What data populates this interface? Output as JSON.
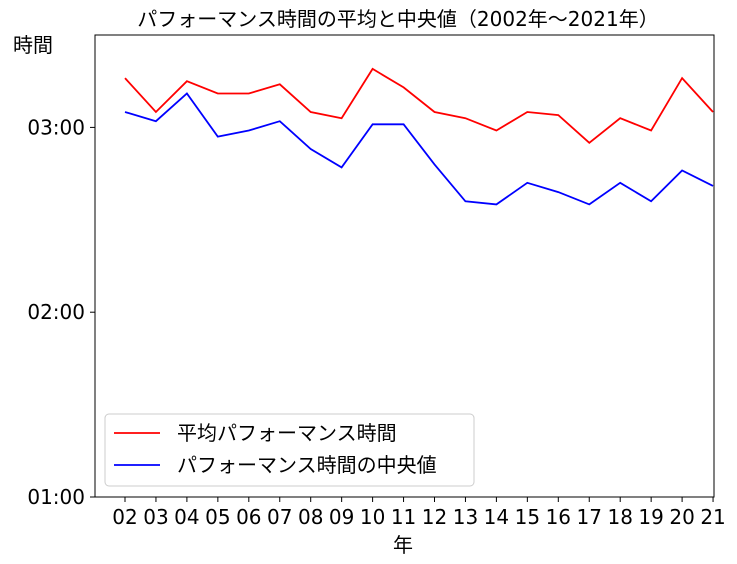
{
  "chart_data": {
    "type": "line",
    "title": "パフォーマンス時間の平均と中央値（2002年〜2021年）",
    "xlabel": "年",
    "ylabel": "時間",
    "categories": [
      "02",
      "03",
      "04",
      "05",
      "06",
      "07",
      "08",
      "09",
      "10",
      "11",
      "12",
      "13",
      "14",
      "15",
      "16",
      "17",
      "18",
      "19",
      "20",
      "21"
    ],
    "y_unit": "minutes",
    "ylim": [
      60,
      210
    ],
    "y_ticks": [
      60,
      120,
      180
    ],
    "y_tick_labels": [
      "01:00",
      "02:00",
      "03:00"
    ],
    "grid": false,
    "legend_position": "lower-left",
    "series": [
      {
        "name": "平均パフォーマンス時間",
        "color": "#ff0000",
        "values": [
          196,
          185,
          195,
          191,
          191,
          194,
          185,
          183,
          199,
          193,
          185,
          183,
          179,
          185,
          184,
          175,
          183,
          179,
          196,
          185
        ]
      },
      {
        "name": "パフォーマンス時間の中央値",
        "color": "#0000ff",
        "values": [
          185,
          182,
          191,
          177,
          179,
          182,
          173,
          167,
          181,
          181,
          168,
          156,
          155,
          162,
          159,
          155,
          162,
          156,
          166,
          161
        ]
      }
    ]
  }
}
